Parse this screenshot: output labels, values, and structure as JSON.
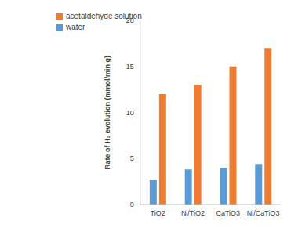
{
  "chart_data": {
    "type": "bar",
    "categories": [
      "TiO2",
      "Ni/TiO2",
      "CaTiO3",
      "Ni/CaTiO3"
    ],
    "series": [
      {
        "name": "water",
        "color": "#5b9bd5",
        "values": [
          2.7,
          3.8,
          4.0,
          4.4
        ]
      },
      {
        "name": "acetaldehyde solution",
        "color": "#ed7d31",
        "values": [
          12,
          13,
          15,
          17
        ]
      }
    ],
    "y_label": "Rate of H₂ evolution (mmol/min g)",
    "ylim": [
      0,
      20
    ],
    "yticks": [
      0,
      5,
      10,
      15,
      20
    ],
    "grid": false,
    "legend": "upper left"
  }
}
